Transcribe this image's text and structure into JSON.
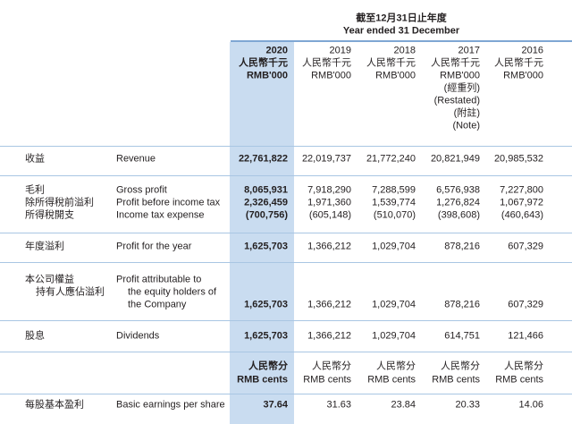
{
  "header": {
    "title_zh": "截至12月31日止年度",
    "title_en": "Year ended 31 December"
  },
  "columns": [
    {
      "year": "2020",
      "unit_zh": "人民幣千元",
      "unit_en": "RMB'000",
      "notes": []
    },
    {
      "year": "2019",
      "unit_zh": "人民幣千元",
      "unit_en": "RMB'000",
      "notes": []
    },
    {
      "year": "2018",
      "unit_zh": "人民幣千元",
      "unit_en": "RMB'000",
      "notes": []
    },
    {
      "year": "2017",
      "unit_zh": "人民幣千元",
      "unit_en": "RMB'000",
      "notes": [
        "(經重列)",
        "(Restated)",
        "(附註)",
        "(Note)"
      ]
    },
    {
      "year": "2016",
      "unit_zh": "人民幣千元",
      "unit_en": "RMB'000",
      "notes": []
    }
  ],
  "rows": [
    {
      "zh": [
        "收益"
      ],
      "en": [
        "Revenue"
      ],
      "values": [
        "22,761,822",
        "22,019,737",
        "21,772,240",
        "20,821,949",
        "20,985,532"
      ]
    },
    {
      "zh": [
        "毛利"
      ],
      "en": [
        "Gross profit"
      ],
      "values": [
        "8,065,931",
        "7,918,290",
        "7,288,599",
        "6,576,938",
        "7,227,800"
      ]
    },
    {
      "zh": [
        "除所得稅前溢利"
      ],
      "en": [
        "Profit before income tax"
      ],
      "values": [
        "2,326,459",
        "1,971,360",
        "1,539,774",
        "1,276,824",
        "1,067,972"
      ]
    },
    {
      "zh": [
        "所得稅開支"
      ],
      "en": [
        "Income tax expense"
      ],
      "values": [
        "(700,756)",
        "(605,148)",
        "(510,070)",
        "(398,608)",
        "(460,643)"
      ]
    },
    {
      "zh": [
        "年度溢利"
      ],
      "en": [
        "Profit for the year"
      ],
      "values": [
        "1,625,703",
        "1,366,212",
        "1,029,704",
        "878,216",
        "607,329"
      ]
    },
    {
      "zh": [
        "本公司權益",
        "持有人應佔溢利"
      ],
      "en": [
        "Profit attributable to",
        "the equity holders of",
        "the Company"
      ],
      "values": [
        "1,625,703",
        "1,366,212",
        "1,029,704",
        "878,216",
        "607,329"
      ]
    },
    {
      "zh": [
        "股息"
      ],
      "en": [
        "Dividends"
      ],
      "values": [
        "1,625,703",
        "1,366,212",
        "1,029,704",
        "614,751",
        "121,466"
      ]
    }
  ],
  "eps_units": [
    {
      "zh": "人民幣分",
      "en": "RMB cents"
    },
    {
      "zh": "人民幣分",
      "en": "RMB cents"
    },
    {
      "zh": "人民幣分",
      "en": "RMB cents"
    },
    {
      "zh": "人民幣分",
      "en": "RMB cents"
    },
    {
      "zh": "人民幣分",
      "en": "RMB cents"
    }
  ],
  "eps": {
    "zh": "每股基本盈利",
    "en": "Basic earnings per share",
    "values": [
      "37.64",
      "31.63",
      "23.84",
      "20.33",
      "14.06"
    ]
  }
}
